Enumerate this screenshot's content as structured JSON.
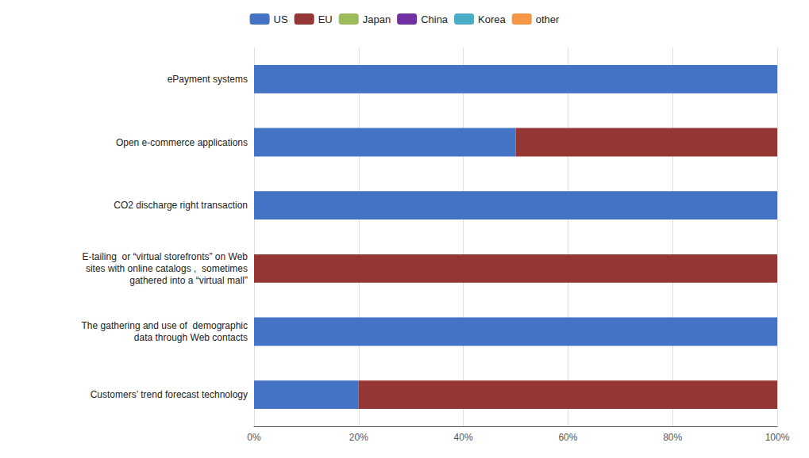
{
  "chart_data": {
    "type": "bar",
    "orientation": "horizontal",
    "stacked": true,
    "categories": [
      "ePayment systems",
      "Open e-commerce applications",
      "CO2 discharge right transaction",
      "E-tailing  or “virtual storefronts” on Web\nsites with online catalogs ,  sometimes\ngathered into a “virtual mall”",
      "The gathering and use of  demographic\ndata through Web contacts",
      "Customers’ trend forecast technology"
    ],
    "series": [
      {
        "name": "US",
        "color": "#4472C4",
        "values": [
          1.0,
          0.5,
          1.0,
          0.0,
          1.0,
          0.2
        ]
      },
      {
        "name": "EU",
        "color": "#943634",
        "values": [
          0.0,
          0.5,
          0.0,
          1.0,
          0.0,
          0.8
        ]
      },
      {
        "name": "Japan",
        "color": "#9BBB59",
        "values": [
          0.0,
          0.0,
          0.0,
          0.0,
          0.0,
          0.0
        ]
      },
      {
        "name": "China",
        "color": "#7030A0",
        "values": [
          0.0,
          0.0,
          0.0,
          0.0,
          0.0,
          0.0
        ]
      },
      {
        "name": "Korea",
        "color": "#4BACC6",
        "values": [
          0.0,
          0.0,
          0.0,
          0.0,
          0.0,
          0.0
        ]
      },
      {
        "name": "other",
        "color": "#F79646",
        "values": [
          0.0,
          0.0,
          0.0,
          0.0,
          0.0,
          0.0
        ]
      }
    ],
    "xlim": [
      0,
      1.0
    ],
    "xticks": [
      {
        "value": 0,
        "label": "0%"
      },
      {
        "value": 0.2,
        "label": "20%"
      },
      {
        "value": 0.4,
        "label": "40%"
      },
      {
        "value": 0.6,
        "label": "60%"
      },
      {
        "value": 0.8,
        "label": "80%"
      },
      {
        "value": 1.0,
        "label": "100%"
      }
    ],
    "grid": true,
    "legend": "top"
  }
}
